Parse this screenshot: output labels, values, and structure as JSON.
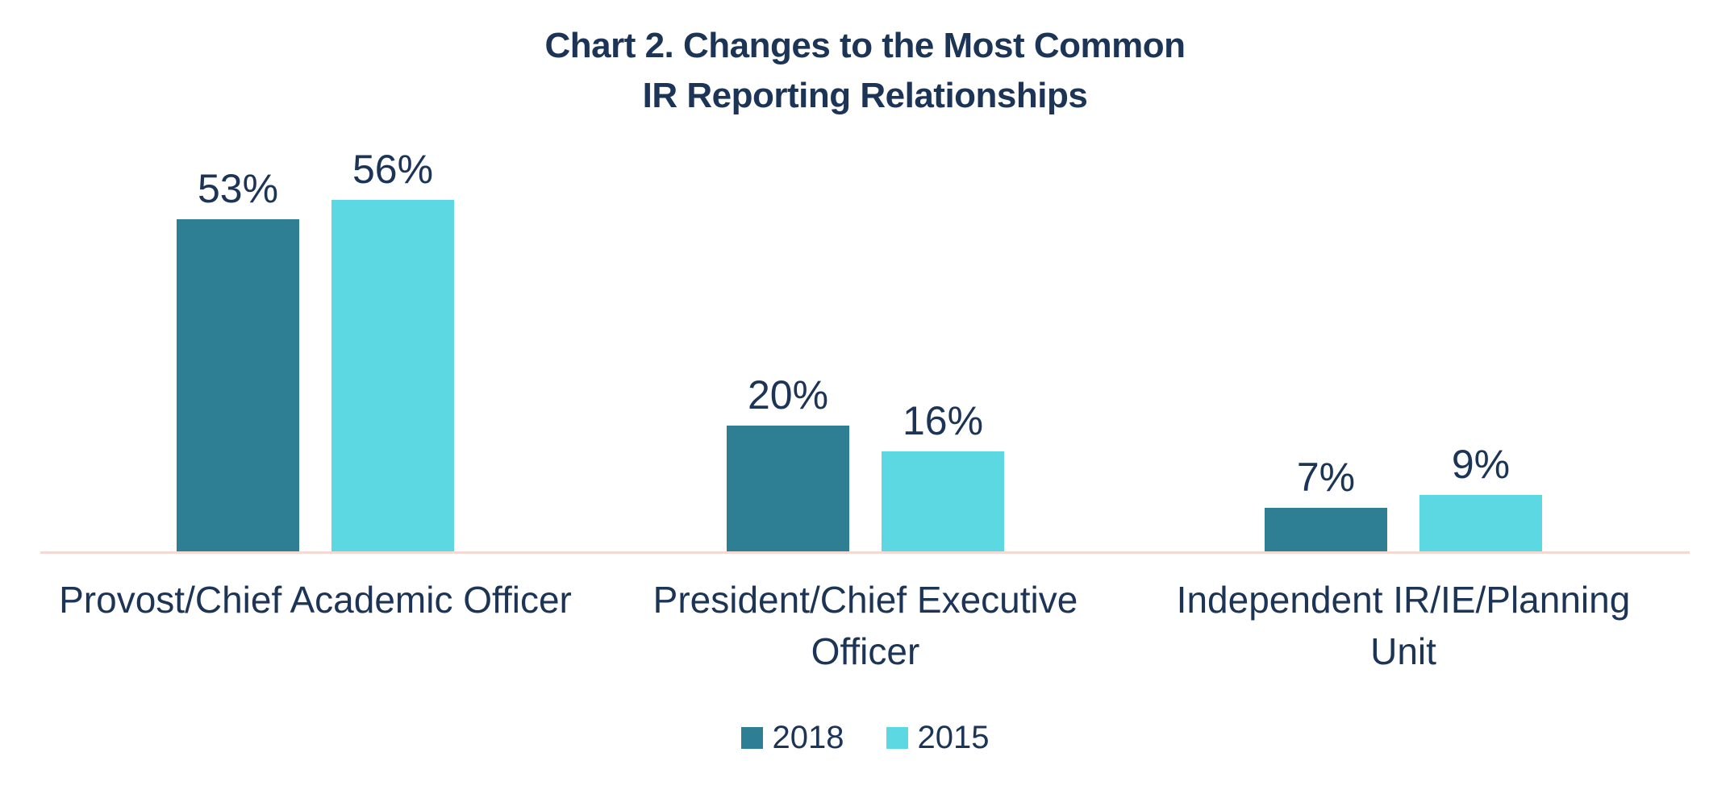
{
  "title": {
    "line1": "Chart 2. Changes to the Most Common",
    "line2": "IR Reporting Relationships"
  },
  "chart_data": {
    "type": "bar",
    "title": "Chart 2. Changes to the Most Common IR Reporting Relationships",
    "categories": [
      "Provost/Chief Academic Officer",
      "President/Chief Executive Officer",
      "Independent IR/IE/Planning Unit"
    ],
    "category_lines": [
      [
        "Provost/Chief Academic Officer"
      ],
      [
        "President/Chief Executive",
        "Officer"
      ],
      [
        "Independent IR/IE/Planning",
        "Unit"
      ]
    ],
    "series": [
      {
        "name": "2018",
        "color": "#2e7f94",
        "values": [
          53,
          20,
          7
        ],
        "labels": [
          "53%",
          "20%",
          "7%"
        ]
      },
      {
        "name": "2015",
        "color": "#5bd8e1",
        "values": [
          56,
          16,
          9
        ],
        "labels": [
          "56%",
          "16%",
          "9%"
        ]
      }
    ],
    "value_suffix": "%",
    "ylim": [
      0,
      60
    ],
    "xlabel": "",
    "ylabel": "",
    "axes_visible": false,
    "gridlines": false,
    "legend_position": "bottom",
    "colors": {
      "text": "#1c3456",
      "baseline": "#f7d9d3",
      "series_2018": "#2e7f94",
      "series_2015": "#5bd8e1",
      "background": "#ffffff"
    }
  }
}
